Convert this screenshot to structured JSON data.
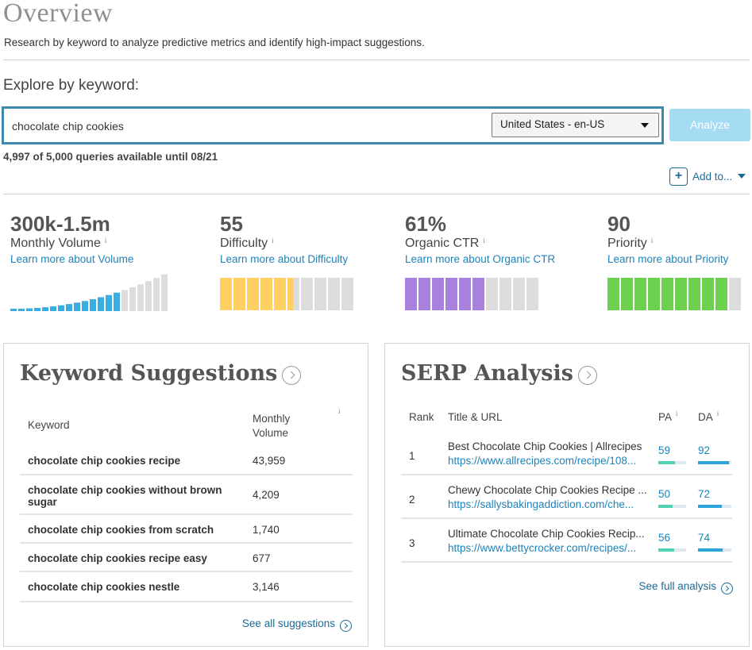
{
  "header": {
    "title": "Overview",
    "subtitle": "Research by keyword to analyze predictive metrics and identify high-impact suggestions."
  },
  "explore": {
    "label": "Explore by keyword:",
    "search_value": "chocolate chip cookies",
    "locale": "United States - en-US",
    "analyze_label": "Analyze",
    "quota": "4,997 of 5,000 queries available until 08/21",
    "add_to_label": "Add to...",
    "add_to_icon": "plus-icon"
  },
  "metrics": [
    {
      "value": "300k-1.5m",
      "label": "Monthly Volume",
      "link": "Learn more about Volume"
    },
    {
      "value": "55",
      "label": "Difficulty",
      "link": "Learn more about Difficulty",
      "segments_filled": 5.5,
      "segments_total": 10,
      "color": "#ffcf63"
    },
    {
      "value": "61%",
      "label": "Organic CTR",
      "link": "Learn more about Organic CTR",
      "segments_filled": 6,
      "segments_total": 10,
      "color": "#a881de"
    },
    {
      "value": "90",
      "label": "Priority",
      "link": "Learn more about Priority",
      "segments_filled": 9,
      "segments_total": 10,
      "color": "#6cd14f"
    }
  ],
  "volume_bars": {
    "total": 20,
    "filled": 14,
    "filled_color": "#3aaee0",
    "empty_color": "#dcdcdc"
  },
  "info_marker": "i",
  "keyword_suggestions": {
    "title": "Keyword Suggestions",
    "col_keyword": "Keyword",
    "col_volume_line1": "Monthly",
    "col_volume_line2": "Volume",
    "rows": [
      {
        "keyword": "chocolate chip cookies recipe",
        "volume": "43,959"
      },
      {
        "keyword": "chocolate chip cookies without brown sugar",
        "volume": "4,209"
      },
      {
        "keyword": "chocolate chip cookies from scratch",
        "volume": "1,740"
      },
      {
        "keyword": "chocolate chip cookies recipe easy",
        "volume": "677"
      },
      {
        "keyword": "chocolate chip cookies nestle",
        "volume": "3,146"
      }
    ],
    "see_all": "See all suggestions"
  },
  "serp_analysis": {
    "title": "SERP Analysis",
    "col_rank": "Rank",
    "col_title": "Title & URL",
    "col_pa": "PA",
    "col_da": "DA",
    "rows": [
      {
        "rank": "1",
        "title": "Best Chocolate Chip Cookies | Allrecipes",
        "url": "https://www.allrecipes.com/recipe/108...",
        "pa": "59",
        "da": "92",
        "pa_fill": 0.59,
        "da_fill": 0.92
      },
      {
        "rank": "2",
        "title": "Chewy Chocolate Chip Cookies Recipe ...",
        "url": "https://sallysbakingaddiction.com/che...",
        "pa": "50",
        "da": "72",
        "pa_fill": 0.5,
        "da_fill": 0.72
      },
      {
        "rank": "3",
        "title": "Ultimate Chocolate Chip Cookies Recip...",
        "url": "https://www.bettycrocker.com/recipes/...",
        "pa": "56",
        "da": "74",
        "pa_fill": 0.56,
        "da_fill": 0.74
      }
    ],
    "see_full": "See full analysis"
  }
}
